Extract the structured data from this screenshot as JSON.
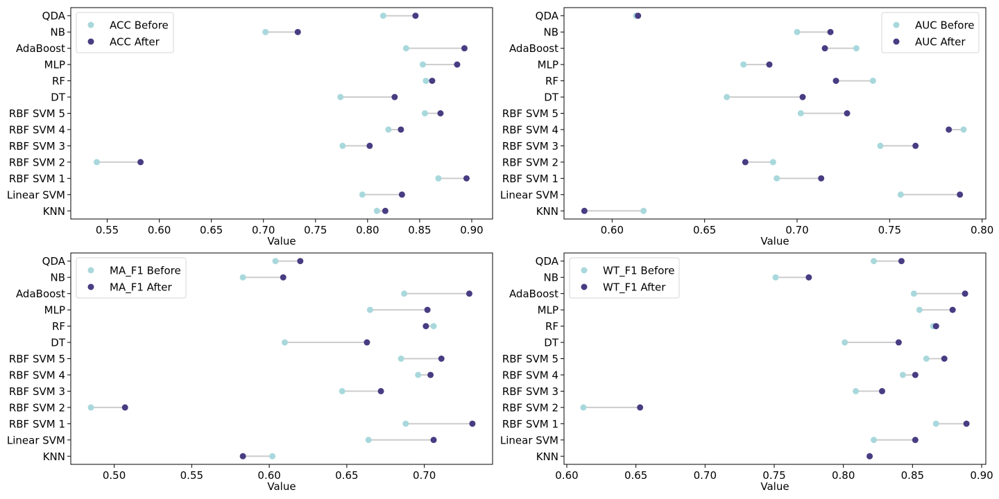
{
  "colors": {
    "before": "#a8d8dc",
    "after": "#483c82",
    "line": "#cccccc",
    "axis": "#000000"
  },
  "chart_data": [
    {
      "type": "scatter",
      "metric": "ACC",
      "xlabel": "Value",
      "xlim": [
        0.515,
        0.92
      ],
      "xticks": [
        0.55,
        0.6,
        0.65,
        0.7,
        0.75,
        0.8,
        0.85,
        0.9
      ],
      "xtick_labels": [
        "0.55",
        "0.60",
        "0.65",
        "0.70",
        "0.75",
        "0.80",
        "0.85",
        "0.90"
      ],
      "legend_loc": "upper-left",
      "categories": [
        "QDA",
        "NB",
        "AdaBoost",
        "MLP",
        "RF",
        "DT",
        "RBF SVM 5",
        "RBF SVM 4",
        "RBF SVM 3",
        "RBF SVM 2",
        "RBF SVM 1",
        "Linear SVM",
        "KNN"
      ],
      "series": [
        {
          "name": "ACC Before",
          "values": [
            0.815,
            0.702,
            0.837,
            0.853,
            0.856,
            0.774,
            0.855,
            0.82,
            0.776,
            0.54,
            0.868,
            0.795,
            0.809
          ]
        },
        {
          "name": "ACC After",
          "values": [
            0.846,
            0.733,
            0.893,
            0.886,
            0.862,
            0.826,
            0.87,
            0.832,
            0.802,
            0.582,
            0.895,
            0.833,
            0.817
          ]
        }
      ]
    },
    {
      "type": "scatter",
      "metric": "AUC",
      "xlabel": "Value",
      "xlim": [
        0.574,
        0.802
      ],
      "xticks": [
        0.6,
        0.65,
        0.7,
        0.75,
        0.8
      ],
      "xtick_labels": [
        "0.60",
        "0.65",
        "0.70",
        "0.75",
        "0.80"
      ],
      "legend_loc": "upper-right",
      "categories": [
        "QDA",
        "NB",
        "AdaBoost",
        "MLP",
        "RF",
        "DT",
        "RBF SVM 5",
        "RBF SVM 4",
        "RBF SVM 3",
        "RBF SVM 2",
        "RBF SVM 1",
        "Linear SVM",
        "KNN"
      ],
      "series": [
        {
          "name": "AUC Before",
          "values": [
            0.613,
            0.7,
            0.732,
            0.671,
            0.741,
            0.662,
            0.702,
            0.79,
            0.745,
            0.687,
            0.689,
            0.756,
            0.617
          ]
        },
        {
          "name": "AUC After",
          "values": [
            0.614,
            0.718,
            0.715,
            0.685,
            0.721,
            0.703,
            0.727,
            0.782,
            0.764,
            0.672,
            0.713,
            0.788,
            0.585
          ]
        }
      ]
    },
    {
      "type": "scatter",
      "metric": "MA_F1",
      "xlabel": "Value",
      "xlim": [
        0.472,
        0.744
      ],
      "xticks": [
        0.5,
        0.55,
        0.6,
        0.65,
        0.7
      ],
      "xtick_labels": [
        "0.50",
        "0.55",
        "0.60",
        "0.65",
        "0.70"
      ],
      "legend_loc": "upper-left",
      "categories": [
        "QDA",
        "NB",
        "AdaBoost",
        "MLP",
        "RF",
        "DT",
        "RBF SVM 5",
        "RBF SVM 4",
        "RBF SVM 3",
        "RBF SVM 2",
        "RBF SVM 1",
        "Linear SVM",
        "KNN"
      ],
      "series": [
        {
          "name": "MA_F1 Before",
          "values": [
            0.604,
            0.583,
            0.687,
            0.665,
            0.706,
            0.61,
            0.685,
            0.696,
            0.647,
            0.485,
            0.688,
            0.664,
            0.602
          ]
        },
        {
          "name": "MA_F1 After",
          "values": [
            0.62,
            0.609,
            0.729,
            0.702,
            0.701,
            0.663,
            0.711,
            0.704,
            0.672,
            0.507,
            0.731,
            0.706,
            0.583
          ]
        }
      ]
    },
    {
      "type": "scatter",
      "metric": "WT_F1",
      "xlabel": "Value",
      "xlim": [
        0.598,
        0.903
      ],
      "xticks": [
        0.6,
        0.65,
        0.7,
        0.75,
        0.8,
        0.85,
        0.9
      ],
      "xtick_labels": [
        "0.60",
        "0.65",
        "0.70",
        "0.75",
        "0.80",
        "0.85",
        "0.90"
      ],
      "legend_loc": "upper-left",
      "categories": [
        "QDA",
        "NB",
        "AdaBoost",
        "MLP",
        "RF",
        "DT",
        "RBF SVM 5",
        "RBF SVM 4",
        "RBF SVM 3",
        "RBF SVM 2",
        "RBF SVM 1",
        "Linear SVM",
        "KNN"
      ],
      "series": [
        {
          "name": "WT_F1 Before",
          "values": [
            0.822,
            0.751,
            0.851,
            0.855,
            0.865,
            0.801,
            0.86,
            0.843,
            0.809,
            0.612,
            0.867,
            0.822,
            0.819
          ]
        },
        {
          "name": "WT_F1 After",
          "values": [
            0.842,
            0.775,
            0.888,
            0.879,
            0.867,
            0.84,
            0.873,
            0.852,
            0.828,
            0.653,
            0.889,
            0.852,
            0.819
          ]
        }
      ]
    }
  ]
}
